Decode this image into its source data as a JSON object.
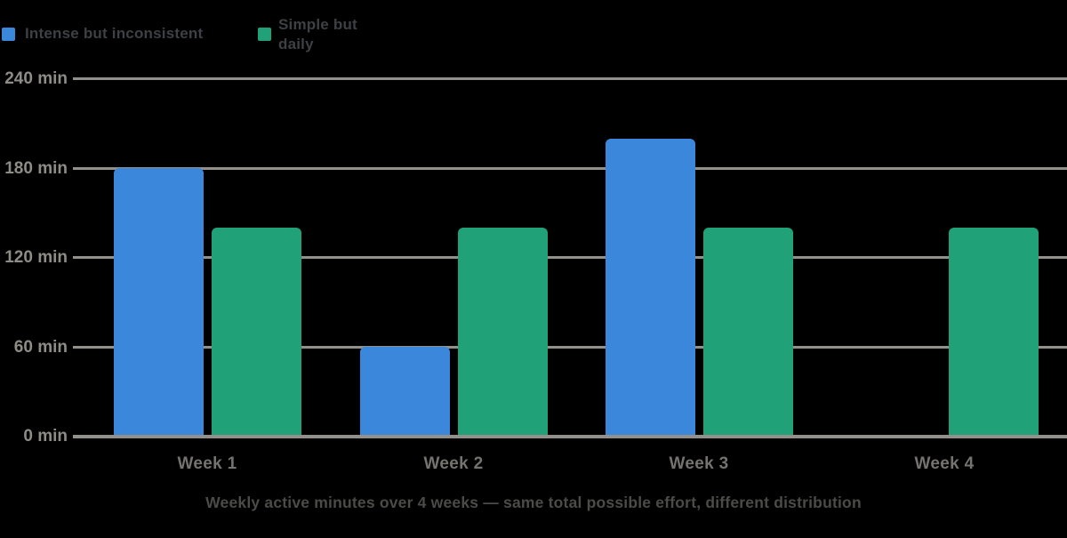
{
  "chart_data": {
    "type": "bar",
    "categories": [
      "Week 1",
      "Week 2",
      "Week 3",
      "Week 4"
    ],
    "series": [
      {
        "name": "Intense but inconsistent",
        "color": "#3A87DC",
        "values": [
          180,
          60,
          200,
          0
        ]
      },
      {
        "name": "Simple but daily",
        "color": "#21A178",
        "values": [
          140,
          140,
          140,
          140
        ]
      }
    ],
    "y_ticks": [
      "240 min",
      "180 min",
      "120 min",
      "60 min",
      "0 min"
    ],
    "y_tick_values": [
      240,
      180,
      120,
      60,
      0
    ],
    "ylim": [
      0,
      240
    ],
    "unit": "min",
    "grid": true,
    "legend_position": "top-left",
    "caption": "Weekly active minutes over 4 weeks — same total possible effort, different distribution",
    "colors": {
      "background": "#000000",
      "gridline": "#91908B",
      "y_tick_label": "#8E8C86",
      "x_tick_label": "#75736F",
      "legend_text": "#3D4044",
      "caption_text": "#4B4B47"
    }
  }
}
